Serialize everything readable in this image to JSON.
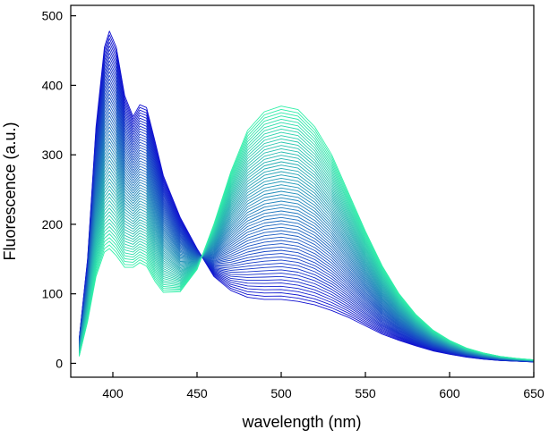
{
  "chart_data": {
    "type": "line",
    "xlabel": "wavelength (nm)",
    "ylabel": "Fluorescence (a.u.)",
    "xlim": [
      375,
      650
    ],
    "ylim": [
      -20,
      515
    ],
    "x_ticks": [
      400,
      450,
      500,
      550,
      600,
      650
    ],
    "y_ticks": [
      0,
      100,
      200,
      300,
      400,
      500
    ],
    "grid": false,
    "legend": "none",
    "colors": {
      "start": "#1010d0",
      "end": "#30f0a8",
      "frame": "#000000"
    },
    "series_count": 60,
    "series_first": {
      "x": [
        380,
        385,
        390,
        395,
        398,
        402,
        407,
        412,
        416,
        420,
        425,
        430,
        440,
        450,
        460,
        470,
        480,
        490,
        500,
        510,
        520,
        530,
        540,
        550,
        560,
        570,
        580,
        590,
        600,
        610,
        620,
        630,
        640,
        650
      ],
      "values": [
        35,
        150,
        340,
        455,
        478,
        455,
        385,
        355,
        372,
        368,
        320,
        270,
        210,
        165,
        125,
        105,
        95,
        92,
        92,
        89,
        84,
        76,
        66,
        54,
        42,
        33,
        25,
        18,
        13,
        9,
        6,
        4,
        3,
        2
      ]
    },
    "series_last": {
      "x": [
        380,
        385,
        390,
        395,
        398,
        402,
        407,
        412,
        416,
        420,
        425,
        430,
        440,
        450,
        460,
        470,
        480,
        490,
        500,
        510,
        520,
        530,
        540,
        550,
        560,
        570,
        580,
        590,
        600,
        610,
        620,
        630,
        640,
        650
      ],
      "values": [
        10,
        60,
        125,
        160,
        165,
        155,
        138,
        138,
        145,
        140,
        118,
        102,
        103,
        135,
        200,
        275,
        335,
        362,
        370,
        365,
        340,
        300,
        245,
        190,
        140,
        100,
        70,
        48,
        33,
        22,
        15,
        10,
        7,
        5
      ]
    }
  }
}
